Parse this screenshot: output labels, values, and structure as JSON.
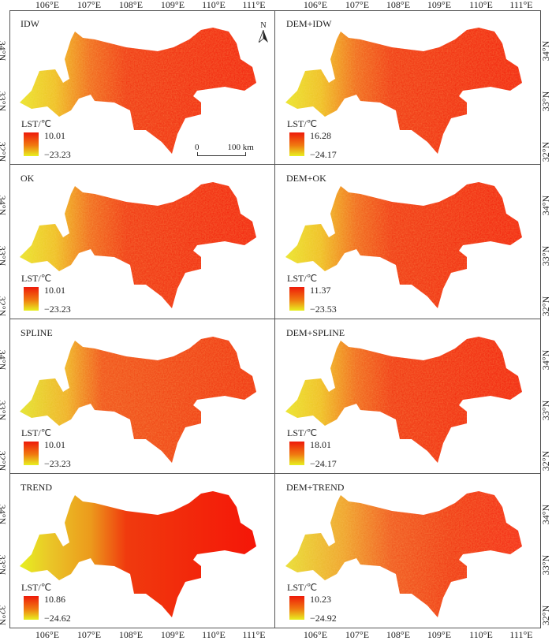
{
  "lon_labels": [
    "106°E",
    "107°E",
    "108°E",
    "109°E",
    "110°E",
    "111°E"
  ],
  "lat_labels": [
    "34°N",
    "33°N",
    "32°N"
  ],
  "legend_title": "LST/℃",
  "panels": [
    {
      "title": "IDW",
      "max": "10.01",
      "min": "−23.23",
      "style": "idw"
    },
    {
      "title": "DEM+IDW",
      "max": "16.28",
      "min": "−24.17",
      "style": "idw"
    },
    {
      "title": "OK",
      "max": "10.01",
      "min": "−23.23",
      "style": "idw"
    },
    {
      "title": "DEM+OK",
      "max": "11.37",
      "min": "−23.53",
      "style": "idw"
    },
    {
      "title": "SPLINE",
      "max": "10.01",
      "min": "−23.23",
      "style": "spline"
    },
    {
      "title": "DEM+SPLINE",
      "max": "18.01",
      "min": "−24.17",
      "style": "idw"
    },
    {
      "title": "TREND",
      "max": "10.86",
      "min": "−24.62",
      "style": "trend"
    },
    {
      "title": "DEM+TREND",
      "max": "10.23",
      "min": "−24.92",
      "style": "dem"
    }
  ],
  "north_label": "N",
  "scale_bar": {
    "start": "0",
    "end": "100 km"
  },
  "colors": {
    "high": "#ee1a0a",
    "mid": "#f07a10",
    "low": "#e8f020"
  }
}
